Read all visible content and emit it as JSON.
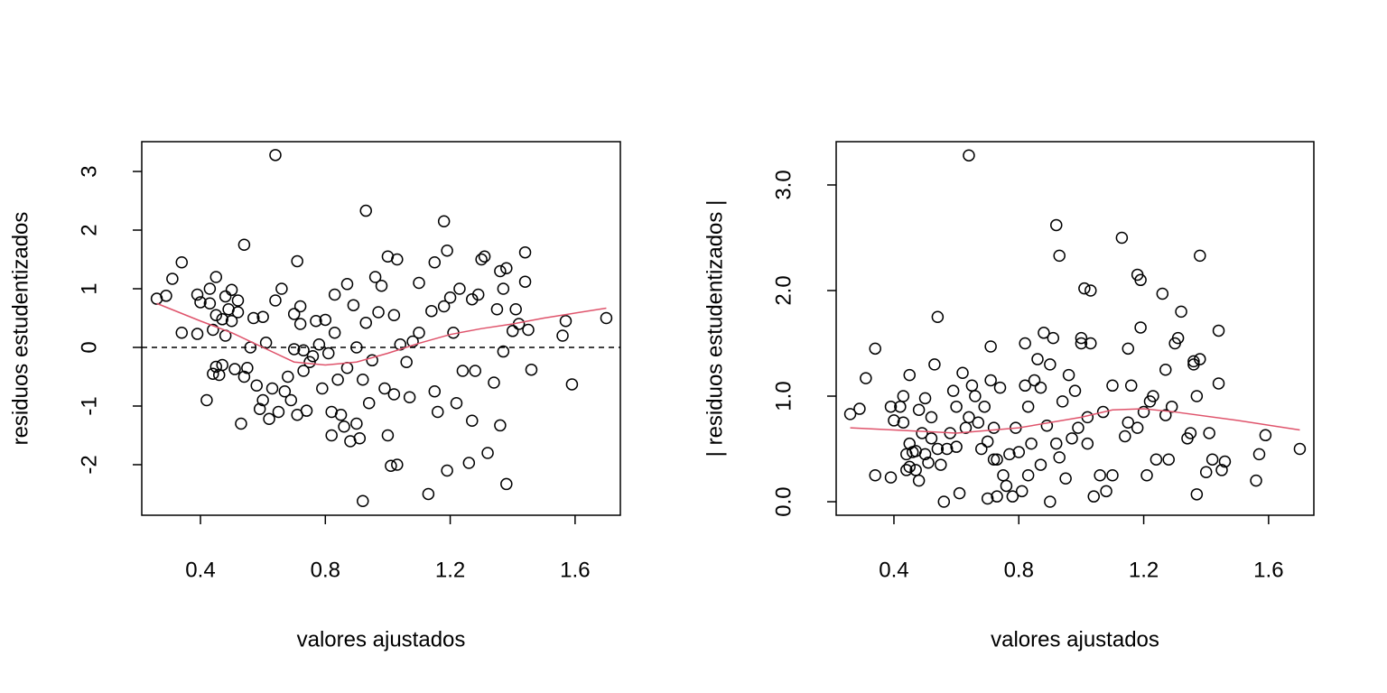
{
  "chart_data": [
    {
      "type": "scatter",
      "xlabel": "valores ajustados",
      "ylabel": "residuos estudentizados",
      "color": "#000000",
      "xlim": [
        0.212,
        1.745
      ],
      "ylim": [
        -2.862,
        3.508
      ],
      "xticks": [
        0.4,
        0.8,
        1.2,
        1.6
      ],
      "yticks": [
        -2,
        -1,
        0,
        1,
        2,
        3
      ],
      "hline": 0,
      "x": [
        0.26,
        0.29,
        0.31,
        0.34,
        0.34,
        0.39,
        0.39,
        0.4,
        0.42,
        0.43,
        0.43,
        0.44,
        0.44,
        0.45,
        0.45,
        0.45,
        0.46,
        0.47,
        0.47,
        0.48,
        0.48,
        0.49,
        0.5,
        0.5,
        0.51,
        0.52,
        0.52,
        0.53,
        0.54,
        0.54,
        0.55,
        0.56,
        0.57,
        0.58,
        0.59,
        0.6,
        0.6,
        0.61,
        0.62,
        0.63,
        0.64,
        0.64,
        0.65,
        0.66,
        0.67,
        0.68,
        0.69,
        0.7,
        0.7,
        0.71,
        0.71,
        0.72,
        0.72,
        0.73,
        0.73,
        0.74,
        0.75,
        0.76,
        0.77,
        0.78,
        0.79,
        0.8,
        0.81,
        0.82,
        0.82,
        0.83,
        0.83,
        0.84,
        0.85,
        0.86,
        0.87,
        0.87,
        0.88,
        0.89,
        0.9,
        0.9,
        0.91,
        0.92,
        0.92,
        0.93,
        0.93,
        0.94,
        0.95,
        0.96,
        0.97,
        0.98,
        0.99,
        1.0,
        1.0,
        1.01,
        1.02,
        1.02,
        1.03,
        1.03,
        1.04,
        1.06,
        1.07,
        1.08,
        1.1,
        1.1,
        1.13,
        1.14,
        1.15,
        1.15,
        1.16,
        1.18,
        1.18,
        1.19,
        1.19,
        1.2,
        1.21,
        1.22,
        1.23,
        1.24,
        1.26,
        1.27,
        1.27,
        1.28,
        1.29,
        1.3,
        1.31,
        1.32,
        1.34,
        1.35,
        1.36,
        1.36,
        1.37,
        1.37,
        1.38,
        1.38,
        1.4,
        1.41,
        1.42,
        1.44,
        1.44,
        1.45,
        1.46,
        1.56,
        1.57,
        1.59,
        1.7
      ],
      "values": [
        0.83,
        0.88,
        1.17,
        1.45,
        0.25,
        0.9,
        0.23,
        0.77,
        -0.9,
        1.0,
        0.75,
        -0.45,
        0.3,
        1.2,
        0.55,
        -0.33,
        -0.47,
        0.48,
        -0.3,
        0.87,
        0.2,
        0.65,
        0.98,
        0.45,
        -0.37,
        0.8,
        0.6,
        -1.3,
        1.75,
        -0.5,
        -0.35,
        0.0,
        0.5,
        -0.65,
        -1.05,
        0.52,
        -0.9,
        0.08,
        -1.22,
        -0.7,
        3.28,
        0.8,
        -1.1,
        1.0,
        -0.75,
        -0.5,
        -0.9,
        0.57,
        -0.03,
        -1.15,
        1.47,
        0.7,
        0.4,
        -0.05,
        -0.4,
        -1.08,
        -0.25,
        -0.15,
        0.45,
        0.05,
        -0.7,
        0.47,
        -0.1,
        -1.1,
        -1.5,
        0.25,
        0.9,
        -0.55,
        -1.15,
        -1.35,
        1.08,
        -0.35,
        -1.6,
        0.72,
        0.0,
        -1.3,
        -1.55,
        -2.62,
        -0.55,
        2.33,
        0.42,
        -0.95,
        -0.22,
        1.2,
        0.6,
        1.05,
        -0.7,
        1.55,
        -1.5,
        -2.02,
        0.55,
        -0.8,
        1.5,
        -2.0,
        0.05,
        -0.25,
        -0.85,
        0.1,
        1.1,
        0.25,
        -2.5,
        0.62,
        1.45,
        -0.75,
        -1.1,
        2.15,
        0.7,
        1.65,
        -2.1,
        0.85,
        0.25,
        -0.95,
        1.0,
        -0.4,
        -1.97,
        0.82,
        -1.25,
        -0.4,
        0.9,
        1.5,
        1.55,
        -1.8,
        -0.6,
        0.65,
        1.3,
        -1.33,
        -0.07,
        1.0,
        1.35,
        -2.33,
        0.28,
        0.65,
        0.4,
        1.62,
        1.12,
        0.3,
        -0.38,
        0.2,
        0.45,
        -0.63,
        0.5
      ],
      "smooth": {
        "color": "#DF536B",
        "x": [
          0.26,
          0.4,
          0.5,
          0.6,
          0.7,
          0.8,
          0.9,
          1.0,
          1.1,
          1.2,
          1.3,
          1.4,
          1.5,
          1.7
        ],
        "values": [
          0.75,
          0.45,
          0.25,
          0.0,
          -0.25,
          -0.3,
          -0.25,
          -0.1,
          0.07,
          0.22,
          0.32,
          0.4,
          0.5,
          0.67
        ]
      }
    },
    {
      "type": "scatter",
      "xlabel": "valores ajustados",
      "ylabel": "| residuos estudentizados |",
      "color": "#000000",
      "xlim": [
        0.215,
        1.745
      ],
      "ylim": [
        -0.128,
        3.41
      ],
      "xticks": [
        0.4,
        0.8,
        1.2,
        1.6
      ],
      "yticks": [
        {
          "value": 0,
          "label": "0.0"
        },
        {
          "value": 1,
          "label": "1.0"
        },
        {
          "value": 2,
          "label": "2.0"
        },
        {
          "value": 3,
          "label": "3.0"
        }
      ],
      "x": [
        0.26,
        0.29,
        0.31,
        0.34,
        0.34,
        0.39,
        0.39,
        0.4,
        0.42,
        0.43,
        0.43,
        0.44,
        0.44,
        0.45,
        0.45,
        0.45,
        0.46,
        0.47,
        0.47,
        0.48,
        0.48,
        0.49,
        0.5,
        0.5,
        0.51,
        0.52,
        0.52,
        0.53,
        0.54,
        0.54,
        0.55,
        0.56,
        0.57,
        0.58,
        0.59,
        0.6,
        0.6,
        0.61,
        0.62,
        0.63,
        0.64,
        0.64,
        0.65,
        0.66,
        0.67,
        0.68,
        0.69,
        0.7,
        0.7,
        0.71,
        0.71,
        0.72,
        0.72,
        0.73,
        0.73,
        0.74,
        0.75,
        0.76,
        0.77,
        0.78,
        0.79,
        0.8,
        0.81,
        0.82,
        0.82,
        0.83,
        0.83,
        0.84,
        0.85,
        0.86,
        0.87,
        0.87,
        0.88,
        0.89,
        0.9,
        0.9,
        0.91,
        0.92,
        0.92,
        0.93,
        0.93,
        0.94,
        0.95,
        0.96,
        0.97,
        0.98,
        0.99,
        1.0,
        1.0,
        1.01,
        1.02,
        1.02,
        1.03,
        1.03,
        1.04,
        1.06,
        1.07,
        1.08,
        1.1,
        1.1,
        1.13,
        1.14,
        1.15,
        1.15,
        1.16,
        1.18,
        1.18,
        1.19,
        1.19,
        1.2,
        1.21,
        1.22,
        1.23,
        1.24,
        1.26,
        1.27,
        1.27,
        1.28,
        1.29,
        1.3,
        1.31,
        1.32,
        1.34,
        1.35,
        1.36,
        1.36,
        1.37,
        1.37,
        1.38,
        1.38,
        1.4,
        1.41,
        1.42,
        1.44,
        1.44,
        1.45,
        1.46,
        1.56,
        1.57,
        1.59,
        1.7
      ],
      "values": [
        0.83,
        0.88,
        1.17,
        1.45,
        0.25,
        0.9,
        0.23,
        0.77,
        0.9,
        1.0,
        0.75,
        0.45,
        0.3,
        1.2,
        0.55,
        0.33,
        0.47,
        0.48,
        0.3,
        0.87,
        0.2,
        0.65,
        0.98,
        0.45,
        0.37,
        0.8,
        0.6,
        1.3,
        1.75,
        0.5,
        0.35,
        0.0,
        0.5,
        0.65,
        1.05,
        0.52,
        0.9,
        0.08,
        1.22,
        0.7,
        3.28,
        0.8,
        1.1,
        1.0,
        0.75,
        0.5,
        0.9,
        0.57,
        0.03,
        1.15,
        1.47,
        0.7,
        0.4,
        0.05,
        0.4,
        1.08,
        0.25,
        0.15,
        0.45,
        0.05,
        0.7,
        0.47,
        0.1,
        1.1,
        1.5,
        0.25,
        0.9,
        0.55,
        1.15,
        1.35,
        1.08,
        0.35,
        1.6,
        0.72,
        0.0,
        1.3,
        1.55,
        2.62,
        0.55,
        2.33,
        0.42,
        0.95,
        0.22,
        1.2,
        0.6,
        1.05,
        0.7,
        1.55,
        1.5,
        2.02,
        0.55,
        0.8,
        1.5,
        2.0,
        0.05,
        0.25,
        0.85,
        0.1,
        1.1,
        0.25,
        2.5,
        0.62,
        1.45,
        0.75,
        1.1,
        2.15,
        0.7,
        1.65,
        2.1,
        0.85,
        0.25,
        0.95,
        1.0,
        0.4,
        1.97,
        0.82,
        1.25,
        0.4,
        0.9,
        1.5,
        1.55,
        1.8,
        0.6,
        0.65,
        1.3,
        1.33,
        0.07,
        1.0,
        1.35,
        2.33,
        0.28,
        0.65,
        0.4,
        1.62,
        1.12,
        0.3,
        0.38,
        0.2,
        0.45,
        0.63,
        0.5
      ],
      "smooth": {
        "color": "#DF536B",
        "x": [
          0.26,
          0.4,
          0.6,
          0.8,
          1.0,
          1.1,
          1.2,
          1.3,
          1.5,
          1.7
        ],
        "values": [
          0.7,
          0.68,
          0.65,
          0.7,
          0.8,
          0.87,
          0.88,
          0.85,
          0.77,
          0.68
        ]
      }
    }
  ]
}
